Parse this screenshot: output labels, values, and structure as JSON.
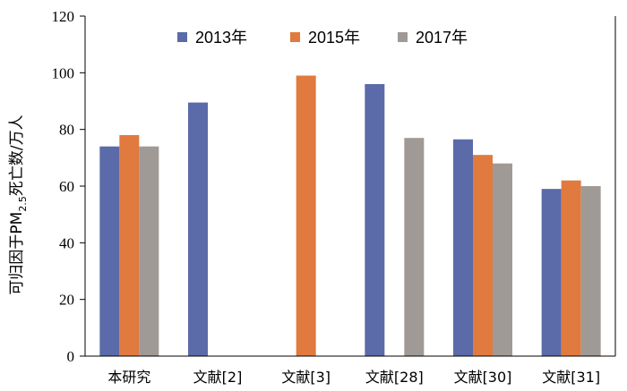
{
  "chart_data": {
    "type": "bar",
    "categories": [
      "本研究",
      "文献[2]",
      "文献[3]",
      "文献[28]",
      "文献[30]",
      "文献[31]"
    ],
    "series": [
      {
        "name": "2013年",
        "color": "#5b6aa8",
        "values": [
          74,
          89.5,
          null,
          96,
          76.5,
          59
        ]
      },
      {
        "name": "2015年",
        "color": "#e07a3f",
        "values": [
          78,
          null,
          99,
          null,
          71,
          62
        ]
      },
      {
        "name": "2017年",
        "color": "#a09a97",
        "values": [
          74,
          null,
          null,
          77,
          68,
          60
        ]
      }
    ],
    "ylabel_main": "可归因于PM",
    "ylabel_sub": "2.5",
    "ylabel_tail": "死亡数/万人",
    "ylim": [
      0,
      120
    ],
    "yticks": [
      0,
      20,
      40,
      60,
      80,
      100,
      120
    ],
    "legend_position": "top",
    "grid": false
  }
}
